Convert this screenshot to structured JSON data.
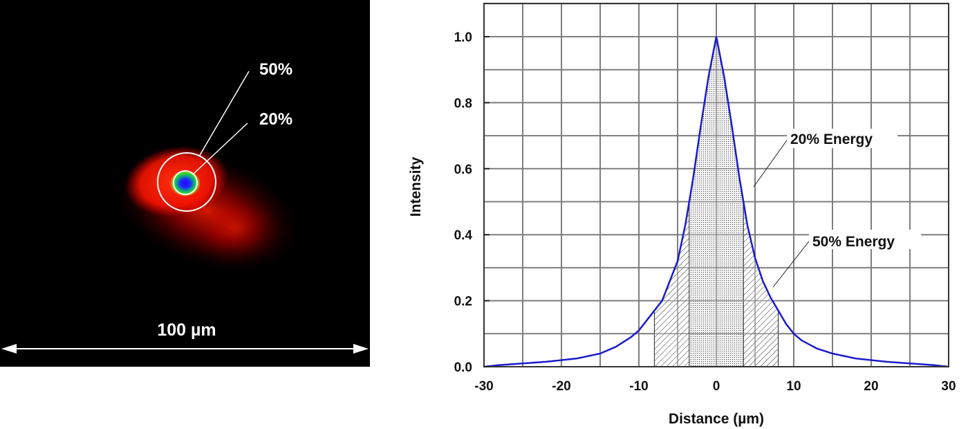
{
  "left_panel": {
    "scale_label": "100 µm",
    "ring_labels": [
      "50%",
      "20%"
    ],
    "colors": {
      "background": "#000000",
      "glow": "#ff1a00",
      "core": "#1a1aff",
      "ring": "#ffffff"
    }
  },
  "chart_data": {
    "type": "area",
    "title": "",
    "xlabel": "Distance (µm)",
    "ylabel": "Intensity",
    "xlim": [
      -30,
      30
    ],
    "ylim": [
      0,
      1.1
    ],
    "grid": true,
    "x_ticks": [
      "-30",
      "-20",
      "-10",
      "0",
      "10",
      "20",
      "30"
    ],
    "y_ticks": [
      "0.0",
      "0.2",
      "0.4",
      "0.6",
      "0.8",
      "1.0"
    ],
    "series": [
      {
        "name": "Intensity profile",
        "color": "#1a1acc",
        "x": [
          -30,
          -28,
          -25,
          -22,
          -20,
          -18,
          -15,
          -13,
          -11,
          -10,
          -9,
          -8,
          -7,
          -6,
          -5,
          -4,
          -3,
          -2,
          -1,
          0,
          1,
          2,
          3,
          4,
          5,
          6,
          7,
          8,
          9,
          10,
          11,
          13,
          15,
          18,
          20,
          22,
          25,
          28,
          30
        ],
        "values": [
          0.0,
          0.005,
          0.01,
          0.015,
          0.02,
          0.025,
          0.04,
          0.06,
          0.09,
          0.11,
          0.14,
          0.17,
          0.2,
          0.26,
          0.32,
          0.43,
          0.57,
          0.73,
          0.88,
          1.0,
          0.88,
          0.73,
          0.57,
          0.43,
          0.33,
          0.26,
          0.21,
          0.17,
          0.13,
          0.1,
          0.08,
          0.055,
          0.04,
          0.025,
          0.02,
          0.015,
          0.01,
          0.005,
          0.0
        ]
      }
    ],
    "regions": [
      {
        "name": "20% Energy",
        "x_range": [
          -3.5,
          3.5
        ],
        "fill": "dotted"
      },
      {
        "name": "50% Energy",
        "x_range": [
          -8,
          8
        ],
        "fill": "hatched"
      }
    ],
    "annotations": [
      "20% Energy",
      "50% Energy"
    ]
  }
}
